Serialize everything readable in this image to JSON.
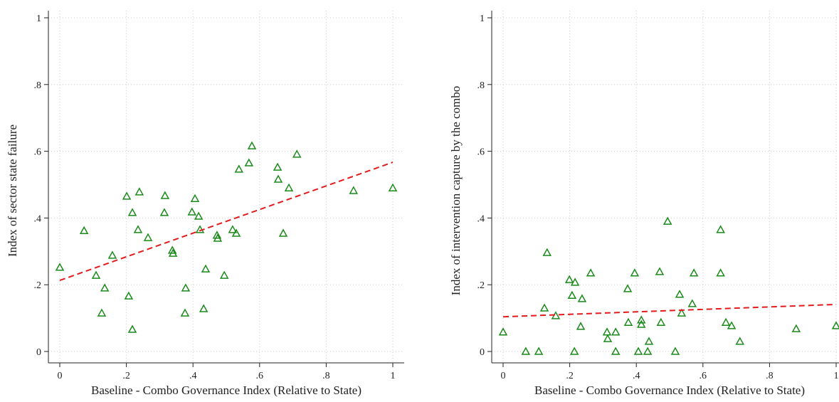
{
  "chart_data": [
    {
      "type": "scatter",
      "x_label": "Baseline - Combo Governance Index (Relative to State)",
      "y_label": "Index of sector state failure",
      "xlim": [
        0,
        1
      ],
      "ylim": [
        0,
        1
      ],
      "xticks": [
        0,
        {
          "value": 0.2,
          "label": ".2"
        },
        {
          "value": 0.4,
          "label": ".4"
        },
        {
          "value": 0.6,
          "label": ".6"
        },
        {
          "value": 0.8,
          "label": ".8"
        },
        1
      ],
      "yticks": [
        0,
        {
          "value": 0.2,
          "label": ".2"
        },
        {
          "value": 0.4,
          "label": ".4"
        },
        {
          "value": 0.6,
          "label": ".6"
        },
        {
          "value": 0.8,
          "label": ".8"
        },
        1
      ],
      "grid": true,
      "color": "#1a8a1a",
      "x": [
        0,
        0.073,
        0.109,
        0.135,
        0.126,
        0.158,
        0.201,
        0.207,
        0.218,
        0.218,
        0.235,
        0.239,
        0.265,
        0.316,
        0.314,
        0.338,
        0.34,
        0.378,
        0.376,
        0.397,
        0.406,
        0.417,
        0.421,
        0.438,
        0.432,
        0.472,
        0.474,
        0.494,
        0.519,
        0.53,
        0.538,
        0.568,
        0.577,
        0.654,
        0.656,
        0.671,
        0.688,
        0.712,
        0.882,
        1.0
      ],
      "values": [
        0.252,
        0.362,
        0.228,
        0.19,
        0.115,
        0.288,
        0.465,
        0.166,
        0.416,
        0.066,
        0.365,
        0.478,
        0.341,
        0.467,
        0.416,
        0.303,
        0.294,
        0.19,
        0.115,
        0.418,
        0.458,
        0.405,
        0.365,
        0.247,
        0.128,
        0.348,
        0.339,
        0.228,
        0.365,
        0.354,
        0.546,
        0.565,
        0.616,
        0.552,
        0.516,
        0.354,
        0.49,
        0.591,
        0.482,
        0.49
      ],
      "fit": {
        "x": [
          0,
          1
        ],
        "values": [
          0.213,
          0.567
        ],
        "color": "#e41a1c"
      }
    },
    {
      "type": "scatter",
      "x_label": "Baseline - Combo Governance Index (Relative to State)",
      "y_label": "Index of intervention capture by the combo",
      "xlim": [
        0,
        1
      ],
      "ylim": [
        0,
        1
      ],
      "xticks": [
        0,
        {
          "value": 0.2,
          "label": ".2"
        },
        {
          "value": 0.4,
          "label": ".4"
        },
        {
          "value": 0.6,
          "label": ".6"
        },
        {
          "value": 0.8,
          "label": ".8"
        },
        1
      ],
      "yticks": [
        0,
        {
          "value": 0.2,
          "label": ".2"
        },
        {
          "value": 0.4,
          "label": ".4"
        },
        {
          "value": 0.6,
          "label": ".6"
        },
        {
          "value": 0.8,
          "label": ".8"
        },
        1
      ],
      "grid": true,
      "color": "#1a8a1a",
      "x": [
        0,
        0.068,
        0.107,
        0.124,
        0.132,
        0.158,
        0.199,
        0.207,
        0.216,
        0.214,
        0.233,
        0.237,
        0.263,
        0.312,
        0.314,
        0.338,
        0.338,
        0.374,
        0.376,
        0.395,
        0.406,
        0.415,
        0.415,
        0.434,
        0.438,
        0.47,
        0.474,
        0.494,
        0.517,
        0.53,
        0.536,
        0.568,
        0.573,
        0.653,
        0.653,
        0.669,
        0.686,
        0.711,
        0.88,
        1.0
      ],
      "values": [
        0.058,
        0,
        0,
        0.13,
        0.296,
        0.107,
        0.215,
        0.168,
        0.207,
        0,
        0.075,
        0.158,
        0.235,
        0.058,
        0.038,
        0.058,
        0,
        0.188,
        0.087,
        0.235,
        0,
        0.094,
        0.081,
        0,
        0.03,
        0.239,
        0.087,
        0.39,
        0,
        0.171,
        0.115,
        0.143,
        0.235,
        0.365,
        0.235,
        0.087,
        0.077,
        0.03,
        0.068,
        0.077
      ],
      "fit": {
        "x": [
          0,
          1
        ],
        "values": [
          0.104,
          0.141
        ],
        "color": "#e41a1c"
      }
    }
  ]
}
